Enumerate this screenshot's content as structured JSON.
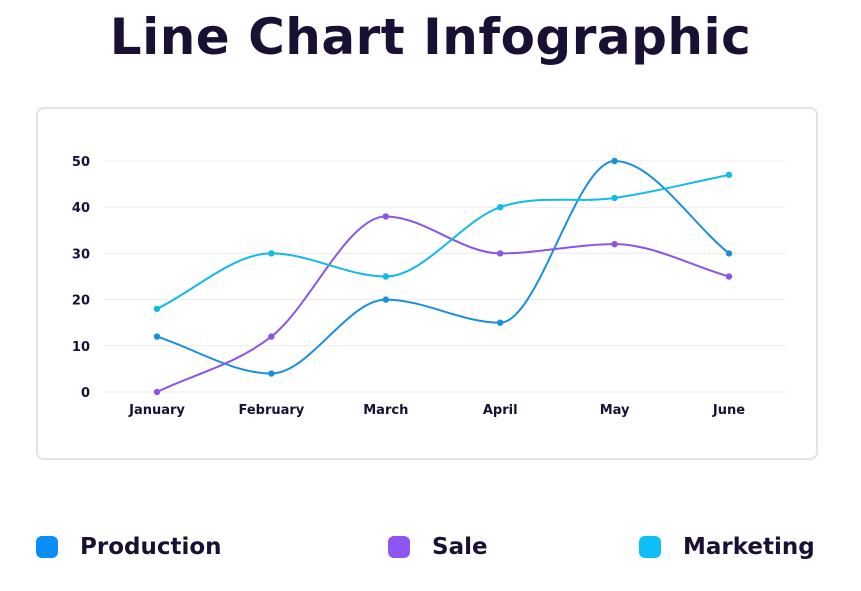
{
  "title": "Line Chart Infographic",
  "colors": {
    "production": "#1a8fdb",
    "sale": "#8b55e6",
    "marketing": "#14b9e8",
    "grid": "#ececec",
    "text": "#1a1033"
  },
  "legend": [
    {
      "label": "Production",
      "color": "#0a8ef5"
    },
    {
      "label": "Sale",
      "color": "#8f55f0"
    },
    {
      "label": "Marketing",
      "color": "#10bef7"
    }
  ],
  "chart_data": {
    "type": "line",
    "title": "Line Chart Infographic",
    "xlabel": "",
    "ylabel": "",
    "categories": [
      "January",
      "February",
      "March",
      "April",
      "May",
      "June"
    ],
    "yticks": [
      0,
      10,
      20,
      30,
      40,
      50
    ],
    "ylim": [
      0,
      50
    ],
    "grid": true,
    "legend_position": "bottom",
    "series": [
      {
        "name": "Production",
        "color": "#1a8fdb",
        "values": [
          12,
          4,
          20,
          15,
          50,
          30
        ]
      },
      {
        "name": "Sale",
        "color": "#8b55e6",
        "values": [
          0,
          12,
          38,
          30,
          32,
          25
        ]
      },
      {
        "name": "Marketing",
        "color": "#14b9e8",
        "values": [
          18,
          30,
          25,
          40,
          42,
          47
        ]
      }
    ]
  }
}
